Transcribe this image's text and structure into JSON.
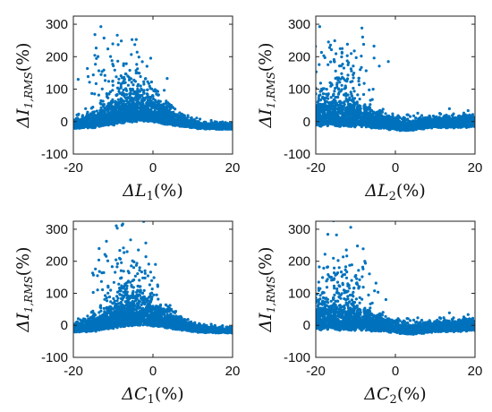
{
  "chart_data": [
    {
      "type": "scatter",
      "xlabel": "ΔL1(%)",
      "ylabel": "ΔI1,RMS(%)",
      "xlim": [
        -20,
        20
      ],
      "ylim": [
        -100,
        325
      ],
      "xticks": [
        -20,
        0,
        20
      ],
      "yticks": [
        -100,
        0,
        100,
        200,
        300
      ],
      "color": "#0072BD",
      "shape": "single-hump",
      "peak_x": -3,
      "outlier_center_x": -8,
      "label_parts": {
        "x_base": "ΔL",
        "x_sub": "1",
        "x_unit": "(%)",
        "y_base": "ΔI",
        "y_sub": "1,RMS",
        "y_unit": "(%)"
      }
    },
    {
      "type": "scatter",
      "xlabel": "ΔL2(%)",
      "ylabel": "ΔI1,RMS(%)",
      "xlim": [
        -20,
        20
      ],
      "ylim": [
        -100,
        325
      ],
      "xticks": [
        -20,
        0,
        20
      ],
      "yticks": [
        -100,
        0,
        100,
        200,
        300
      ],
      "color": "#0072BD",
      "shape": "v-shape",
      "min_x": 2,
      "outlier_center_x": -14,
      "label_parts": {
        "x_base": "ΔL",
        "x_sub": "2",
        "x_unit": "(%)",
        "y_base": "ΔI",
        "y_sub": "1,RMS",
        "y_unit": "(%)"
      }
    },
    {
      "type": "scatter",
      "xlabel": "ΔC1(%)",
      "ylabel": "ΔI1,RMS(%)",
      "xlim": [
        -20,
        20
      ],
      "ylim": [
        -100,
        325
      ],
      "xticks": [
        -20,
        0,
        20
      ],
      "yticks": [
        -100,
        0,
        100,
        200,
        300
      ],
      "color": "#0072BD",
      "shape": "single-hump",
      "peak_x": -3,
      "outlier_center_x": -6,
      "label_parts": {
        "x_base": "ΔC",
        "x_sub": "1",
        "x_unit": "(%)",
        "y_base": "ΔI",
        "y_sub": "1,RMS",
        "y_unit": "(%)"
      }
    },
    {
      "type": "scatter",
      "xlabel": "ΔC2(%)",
      "ylabel": "ΔI1,RMS(%)",
      "xlim": [
        -20,
        20
      ],
      "ylim": [
        -100,
        325
      ],
      "xticks": [
        -20,
        0,
        20
      ],
      "yticks": [
        -100,
        0,
        100,
        200,
        300
      ],
      "color": "#0072BD",
      "shape": "v-shape",
      "min_x": 4,
      "outlier_center_x": -14,
      "label_parts": {
        "x_base": "ΔC",
        "x_sub": "2",
        "x_unit": "(%)",
        "y_base": "ΔI",
        "y_sub": "1,RMS",
        "y_unit": "(%)"
      }
    }
  ]
}
